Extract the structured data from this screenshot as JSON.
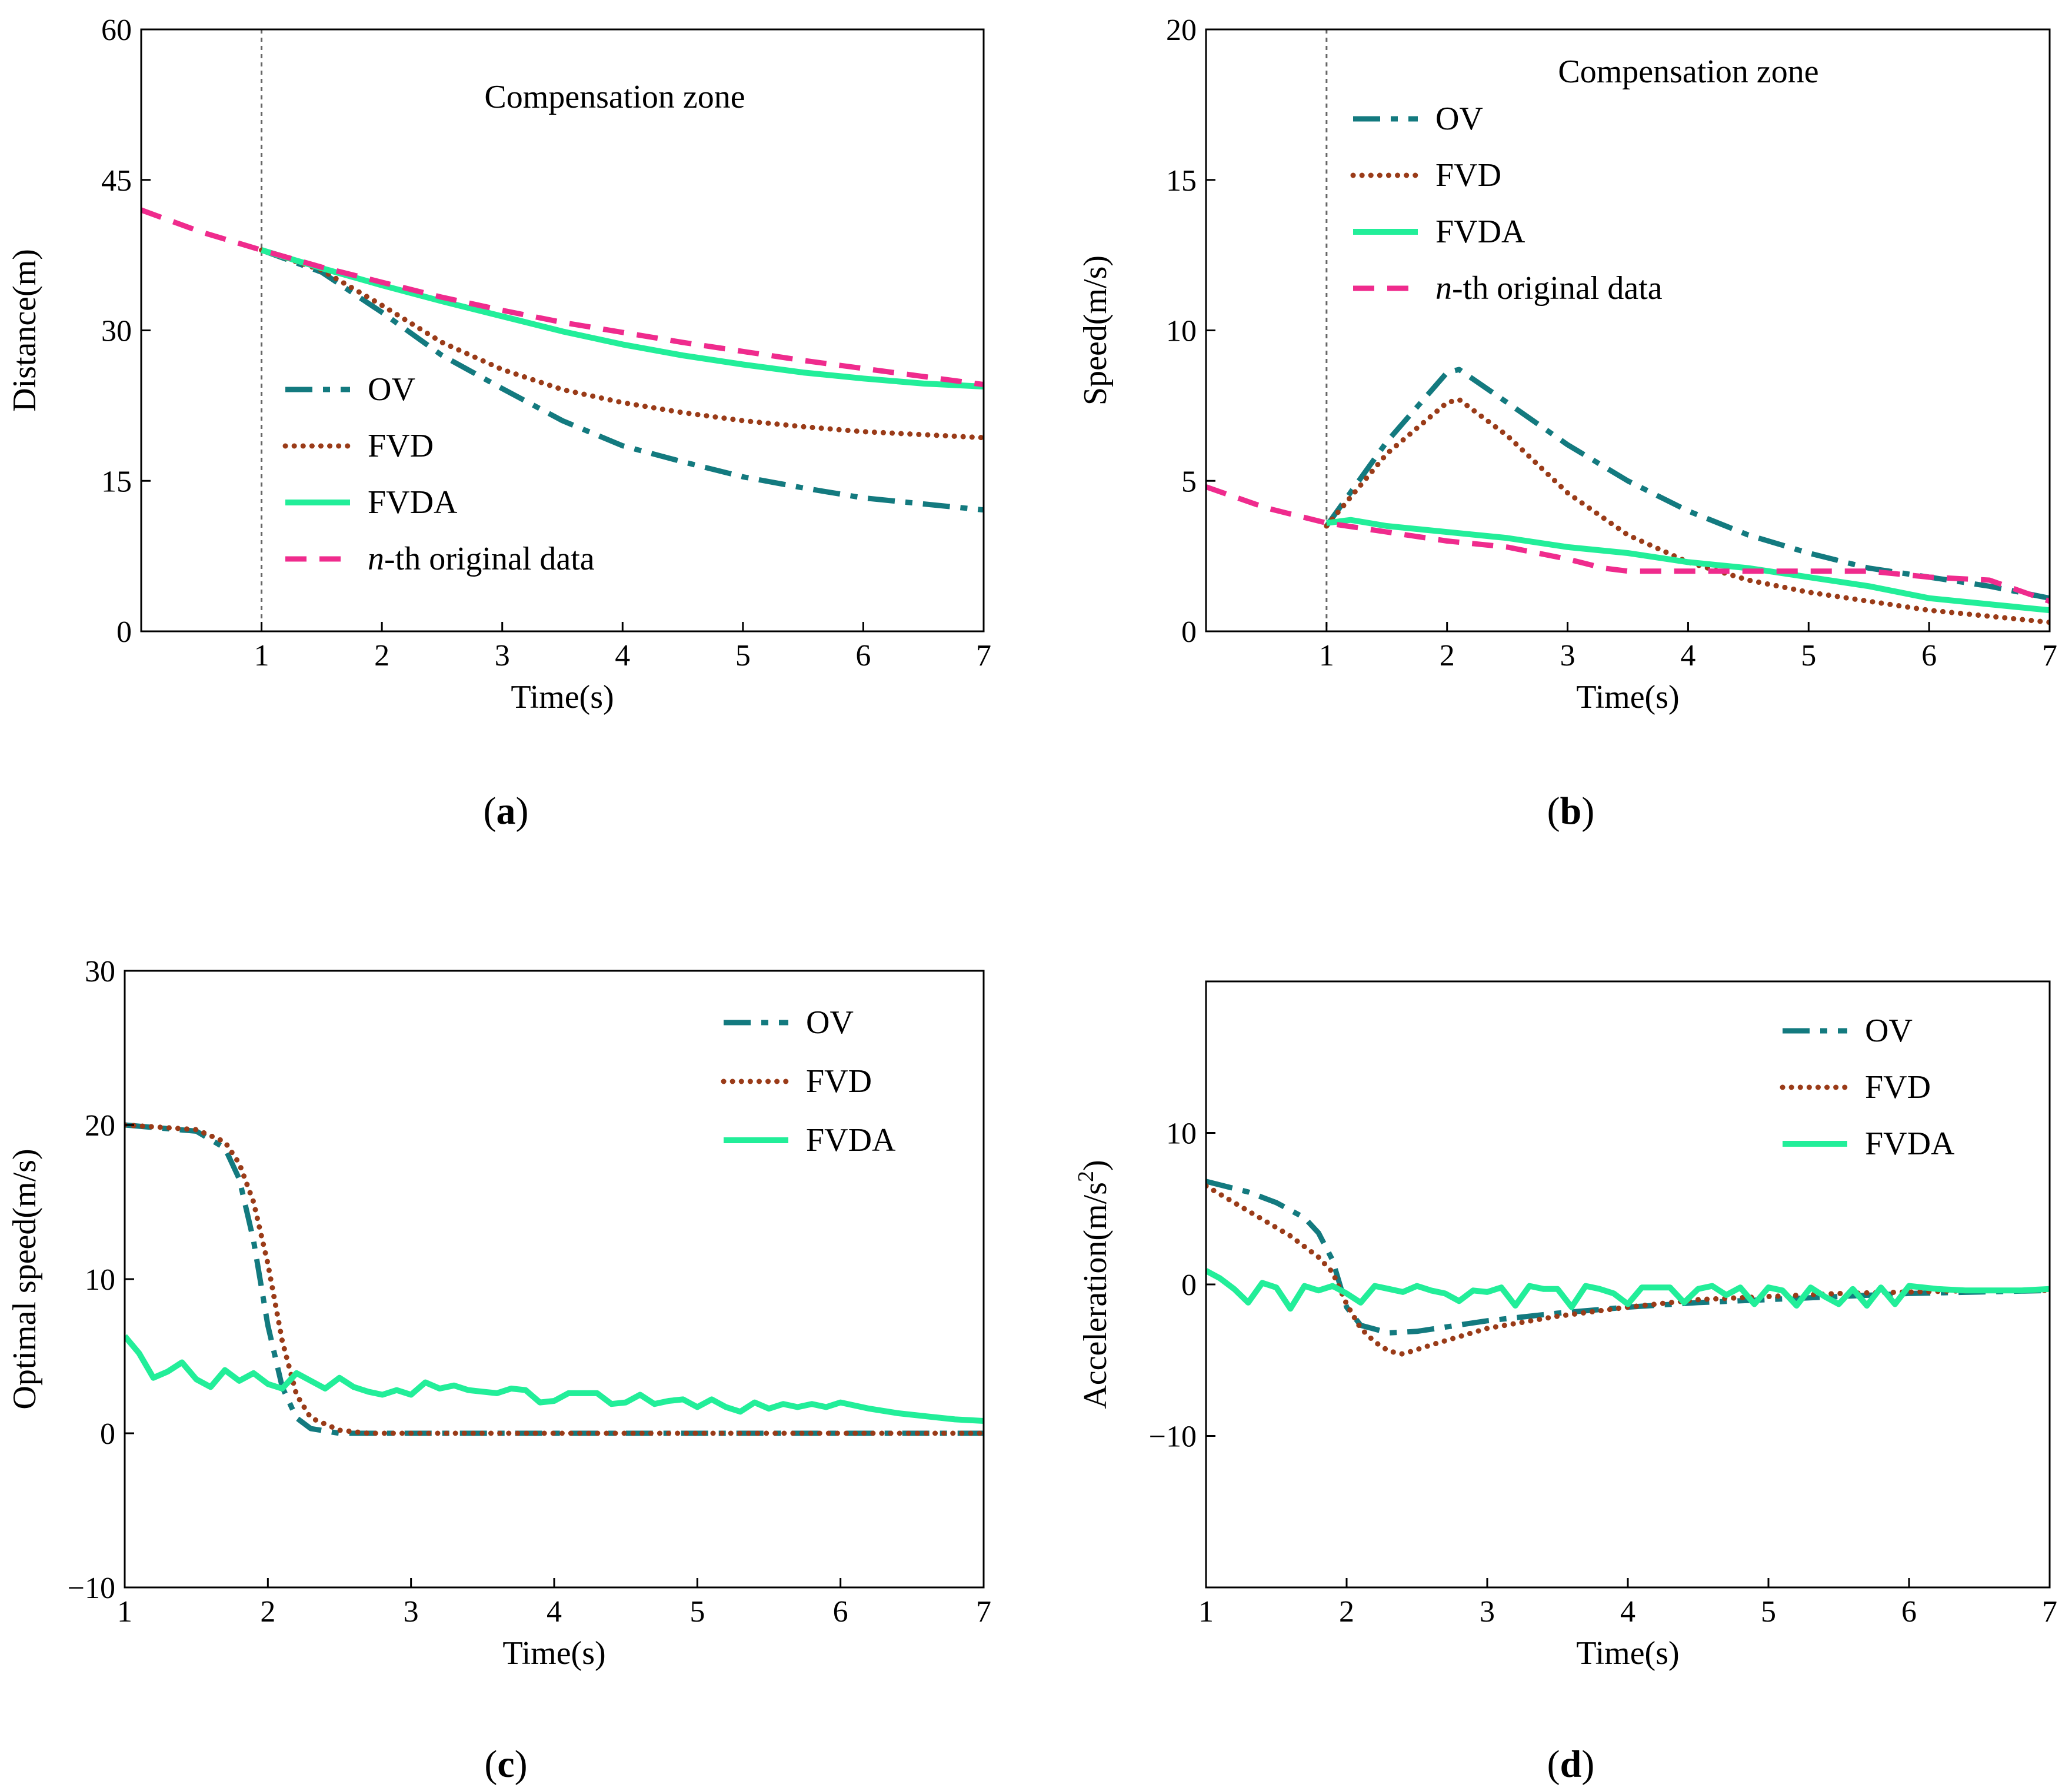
{
  "colors": {
    "OV": "#137a7f",
    "FVD": "#9a3b18",
    "FVDA": "#22ee99",
    "ORIG": "#ef2b8d",
    "axis": "#000000",
    "marker": "#666666"
  },
  "chart_data": [
    {
      "id": "a",
      "type": "line",
      "panel_label": "a",
      "xlabel": "Time(s)",
      "ylabel": "Distance(m)",
      "xlim": [
        0,
        7
      ],
      "ylim": [
        0,
        60
      ],
      "xticks": [
        1,
        2,
        3,
        4,
        5,
        6,
        7
      ],
      "yticks": [
        0,
        15,
        30,
        45,
        60
      ],
      "vline_x": 1,
      "annotation": "Compensation zone",
      "legend_position": "middle-left",
      "series": [
        {
          "key": "OV",
          "name": "OV",
          "x": [
            1,
            1.5,
            2,
            2.5,
            3,
            3.5,
            4,
            4.5,
            5,
            5.5,
            6,
            6.5,
            7
          ],
          "y": [
            38,
            35.8,
            31.8,
            27.5,
            24.2,
            21,
            18.5,
            16.9,
            15.4,
            14.3,
            13.3,
            12.7,
            12.1
          ]
        },
        {
          "key": "FVD",
          "name": "FVD",
          "x": [
            1,
            1.5,
            2,
            2.5,
            3,
            3.5,
            4,
            4.5,
            5,
            5.5,
            6,
            6.5,
            7
          ],
          "y": [
            38,
            36,
            32.5,
            28.8,
            26.1,
            24.1,
            22.8,
            21.8,
            21,
            20.4,
            19.9,
            19.6,
            19.3
          ]
        },
        {
          "key": "FVDA",
          "name": "FVDA",
          "x": [
            1,
            1.5,
            2,
            2.5,
            3,
            3.5,
            4,
            4.5,
            5,
            5.5,
            6,
            6.5,
            7
          ],
          "y": [
            38,
            36.2,
            34.5,
            32.9,
            31.4,
            29.9,
            28.6,
            27.5,
            26.6,
            25.8,
            25.2,
            24.7,
            24.4
          ]
        },
        {
          "key": "ORIG",
          "name": "n-th original data",
          "name_italic": "n",
          "name_rest": "-th original data",
          "x": [
            0,
            0.5,
            1,
            1.5,
            2,
            2.5,
            3,
            3.5,
            4,
            4.5,
            5,
            5.5,
            6,
            6.5,
            7
          ],
          "y": [
            42,
            39.8,
            38,
            36.3,
            34.8,
            33.3,
            32,
            30.8,
            29.8,
            28.8,
            27.9,
            27,
            26.2,
            25.4,
            24.6
          ]
        }
      ]
    },
    {
      "id": "b",
      "type": "line",
      "panel_label": "b",
      "xlabel": "Time(s)",
      "ylabel": "Speed(m/s)",
      "xlim": [
        0,
        7
      ],
      "ylim": [
        0,
        20
      ],
      "xticks": [
        1,
        2,
        3,
        4,
        5,
        6,
        7
      ],
      "yticks": [
        0,
        5,
        10,
        15,
        20
      ],
      "vline_x": 1,
      "annotation": "Compensation zone",
      "legend_position": "top-left",
      "series": [
        {
          "key": "OV",
          "name": "OV",
          "x": [
            1,
            1.5,
            2,
            2.1,
            2.5,
            3,
            3.5,
            4,
            4.5,
            5,
            5.5,
            6,
            6.5,
            7
          ],
          "y": [
            3.5,
            6.3,
            8.6,
            8.7,
            7.6,
            6.2,
            5,
            4,
            3.2,
            2.6,
            2.1,
            1.8,
            1.5,
            1.1
          ]
        },
        {
          "key": "FVD",
          "name": "FVD",
          "x": [
            1,
            1.5,
            2,
            2.1,
            2.5,
            3,
            3.5,
            4,
            4.5,
            5,
            5.5,
            6,
            6.5,
            7
          ],
          "y": [
            3.5,
            5.9,
            7.6,
            7.7,
            6.5,
            4.6,
            3.2,
            2.3,
            1.7,
            1.3,
            1,
            0.7,
            0.5,
            0.3
          ]
        },
        {
          "key": "FVDA",
          "name": "FVDA",
          "x": [
            1,
            1.2,
            1.5,
            2,
            2.5,
            3,
            3.5,
            4,
            4.5,
            5,
            5.5,
            6,
            6.5,
            7
          ],
          "y": [
            3.6,
            3.7,
            3.5,
            3.3,
            3.1,
            2.8,
            2.6,
            2.3,
            2.1,
            1.8,
            1.5,
            1.1,
            0.9,
            0.7
          ]
        },
        {
          "key": "ORIG",
          "name": "n-th original data",
          "name_italic": "n",
          "name_rest": "-th original data",
          "x": [
            0,
            0.5,
            1,
            1.5,
            2,
            2.5,
            3,
            3.3,
            3.5,
            4,
            4.5,
            5,
            5.5,
            6,
            6.5,
            7
          ],
          "y": [
            4.8,
            4.1,
            3.6,
            3.3,
            3,
            2.8,
            2.4,
            2.1,
            2,
            2,
            2,
            2,
            2,
            1.8,
            1.7,
            1
          ]
        }
      ]
    },
    {
      "id": "c",
      "type": "line",
      "panel_label": "c",
      "xlabel": "Time(s)",
      "ylabel": "Optimal speed(m/s)",
      "xlim": [
        1,
        7
      ],
      "ylim": [
        -10,
        30
      ],
      "xticks": [
        1,
        2,
        3,
        4,
        5,
        6,
        7
      ],
      "yticks": [
        -10,
        0,
        10,
        20,
        30
      ],
      "ytick_labels": [
        "−10",
        "0",
        "10",
        "20",
        "30"
      ],
      "legend_position": "top-right",
      "series": [
        {
          "key": "OV",
          "name": "OV",
          "x": [
            1,
            1.5,
            1.7,
            1.8,
            1.9,
            2,
            2.1,
            2.2,
            2.3,
            2.5,
            7
          ],
          "y": [
            20,
            19.6,
            18.5,
            16.5,
            12.5,
            7,
            3,
            1,
            0.3,
            0,
            0
          ]
        },
        {
          "key": "FVD",
          "name": "FVD",
          "x": [
            1,
            1.5,
            1.7,
            1.8,
            1.9,
            2,
            2.1,
            2.2,
            2.3,
            2.5,
            2.7,
            7
          ],
          "y": [
            20,
            19.7,
            18.9,
            17.5,
            15,
            11,
            6,
            2.5,
            1,
            0.2,
            0,
            0
          ]
        },
        {
          "key": "FVDA",
          "name": "FVDA",
          "x": [
            1,
            1.1,
            1.2,
            1.3,
            1.4,
            1.5,
            1.6,
            1.7,
            1.8,
            1.9,
            2,
            2.1,
            2.2,
            2.3,
            2.4,
            2.5,
            2.6,
            2.7,
            2.8,
            2.9,
            3,
            3.1,
            3.2,
            3.3,
            3.4,
            3.5,
            3.6,
            3.7,
            3.8,
            3.9,
            4,
            4.1,
            4.2,
            4.3,
            4.4,
            4.5,
            4.6,
            4.7,
            4.8,
            4.9,
            5,
            5.1,
            5.2,
            5.3,
            5.4,
            5.5,
            5.6,
            5.7,
            5.8,
            5.9,
            6,
            6.2,
            6.4,
            6.6,
            6.8,
            7
          ],
          "y": [
            6.3,
            5.2,
            3.6,
            4,
            4.6,
            3.5,
            3,
            4.1,
            3.4,
            3.9,
            3.2,
            2.9,
            3.9,
            3.4,
            2.9,
            3.6,
            3,
            2.7,
            2.5,
            2.8,
            2.5,
            3.3,
            2.9,
            3.1,
            2.8,
            2.7,
            2.6,
            2.9,
            2.8,
            2,
            2.1,
            2.6,
            2.6,
            2.6,
            1.9,
            2,
            2.5,
            1.9,
            2.1,
            2.2,
            1.7,
            2.2,
            1.7,
            1.4,
            2,
            1.6,
            1.9,
            1.7,
            1.9,
            1.7,
            2,
            1.6,
            1.3,
            1.1,
            0.9,
            0.8
          ]
        }
      ]
    },
    {
      "id": "d",
      "type": "line",
      "panel_label": "d",
      "xlabel": "Time(s)",
      "ylabel": "Acceleration(m/s",
      "ylabel_sup": "2",
      "ylabel_end": ")",
      "xlim": [
        1,
        7
      ],
      "ylim": [
        -20,
        20
      ],
      "xticks": [
        1,
        2,
        3,
        4,
        5,
        6,
        7
      ],
      "yticks": [
        -10,
        0,
        10
      ],
      "ytick_labels": [
        "−10",
        "0",
        "10"
      ],
      "legend_position": "top-right",
      "series": [
        {
          "key": "OV",
          "name": "OV",
          "x": [
            1,
            1.3,
            1.5,
            1.7,
            1.8,
            1.9,
            2,
            2.1,
            2.3,
            2.5,
            3,
            3.5,
            4,
            4.5,
            5,
            5.5,
            6,
            6.5,
            7
          ],
          "y": [
            6.8,
            6.1,
            5.4,
            4.4,
            3.4,
            1.6,
            -1.5,
            -2.7,
            -3.2,
            -3.1,
            -2.4,
            -1.9,
            -1.5,
            -1.2,
            -1,
            -0.8,
            -0.6,
            -0.5,
            -0.4
          ]
        },
        {
          "key": "FVD",
          "name": "FVD",
          "x": [
            1,
            1.2,
            1.4,
            1.6,
            1.8,
            1.9,
            2,
            2.1,
            2.2,
            2.3,
            2.4,
            2.6,
            3,
            3.5,
            4,
            4.5,
            5,
            5.5,
            6,
            6.5,
            7
          ],
          "y": [
            6.5,
            5.4,
            4.3,
            3.2,
            1.8,
            0.8,
            -1.3,
            -2.9,
            -3.8,
            -4.4,
            -4.6,
            -4,
            -2.9,
            -2.1,
            -1.5,
            -1,
            -0.8,
            -0.6,
            -0.5,
            -0.4,
            -0.4
          ]
        },
        {
          "key": "FVDA",
          "name": "FVDA",
          "x": [
            1,
            1.1,
            1.2,
            1.3,
            1.4,
            1.5,
            1.6,
            1.7,
            1.8,
            1.9,
            2,
            2.1,
            2.2,
            2.3,
            2.4,
            2.5,
            2.6,
            2.7,
            2.8,
            2.9,
            3,
            3.1,
            3.2,
            3.3,
            3.4,
            3.5,
            3.6,
            3.7,
            3.8,
            3.9,
            4,
            4.1,
            4.2,
            4.3,
            4.4,
            4.5,
            4.6,
            4.7,
            4.8,
            4.9,
            5,
            5.1,
            5.2,
            5.3,
            5.4,
            5.5,
            5.6,
            5.7,
            5.8,
            5.9,
            6,
            6.2,
            6.4,
            6.6,
            6.8,
            7
          ],
          "y": [
            0.9,
            0.4,
            -0.3,
            -1.2,
            0.1,
            -0.2,
            -1.6,
            -0.1,
            -0.4,
            -0.1,
            -0.6,
            -1.2,
            -0.1,
            -0.3,
            -0.5,
            -0.1,
            -0.4,
            -0.6,
            -1.1,
            -0.4,
            -0.5,
            -0.2,
            -1.4,
            -0.1,
            -0.3,
            -0.3,
            -1.5,
            -0.1,
            -0.3,
            -0.6,
            -1.3,
            -0.2,
            -0.2,
            -0.2,
            -1.2,
            -0.3,
            -0.1,
            -0.7,
            -0.2,
            -1.3,
            -0.2,
            -0.4,
            -1.4,
            -0.2,
            -0.8,
            -1.3,
            -0.3,
            -1.4,
            -0.2,
            -1.3,
            -0.1,
            -0.3,
            -0.4,
            -0.4,
            -0.4,
            -0.3
          ]
        }
      ]
    }
  ]
}
